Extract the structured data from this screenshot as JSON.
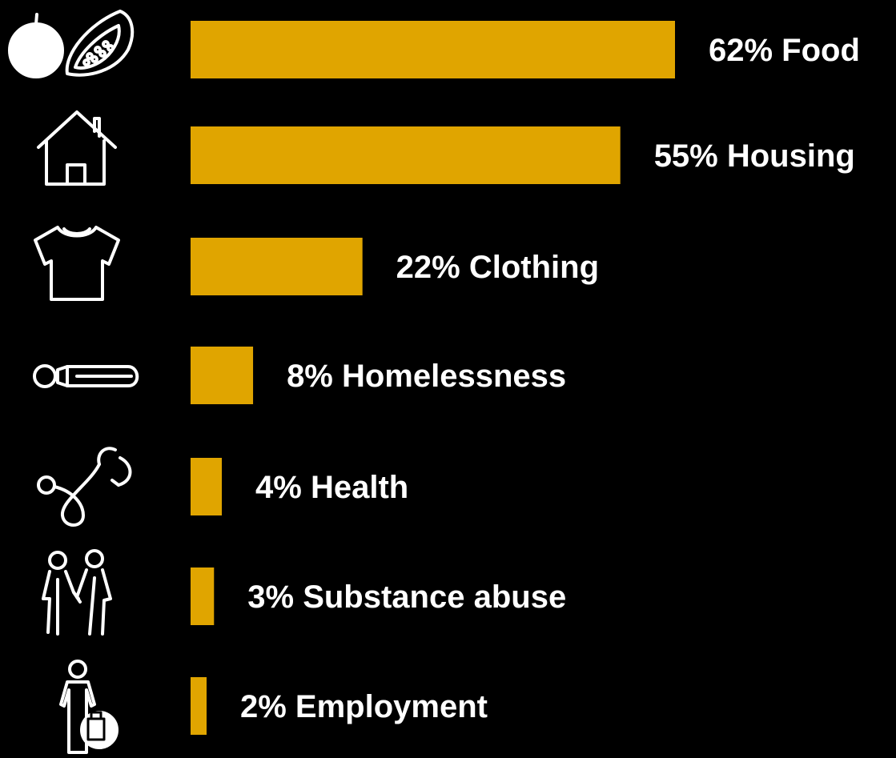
{
  "chart_data": {
    "type": "bar",
    "orientation": "horizontal",
    "categories": [
      "Food",
      "Housing",
      "Clothing",
      "Homelessness",
      "Health",
      "Substance abuse",
      "Employment"
    ],
    "values": [
      62,
      55,
      22,
      8,
      4,
      3,
      2
    ],
    "labels": [
      "62% Food",
      "55% Housing",
      "22% Clothing",
      "8% Homelessness",
      "4% Health",
      "3% Substance abuse",
      "2% Employment"
    ],
    "icons": [
      "tomato-papaya-icon",
      "house-icon",
      "tshirt-icon",
      "sleeping-person-icon",
      "stethoscope-icon",
      "elderly-couple-icon",
      "person-with-briefcase-icon"
    ],
    "unit": "%",
    "xlim": [
      0,
      62
    ],
    "grid": false,
    "legend": "none",
    "bar_color": "#E0A500",
    "background": "#000000",
    "label_color": "#ffffff"
  }
}
